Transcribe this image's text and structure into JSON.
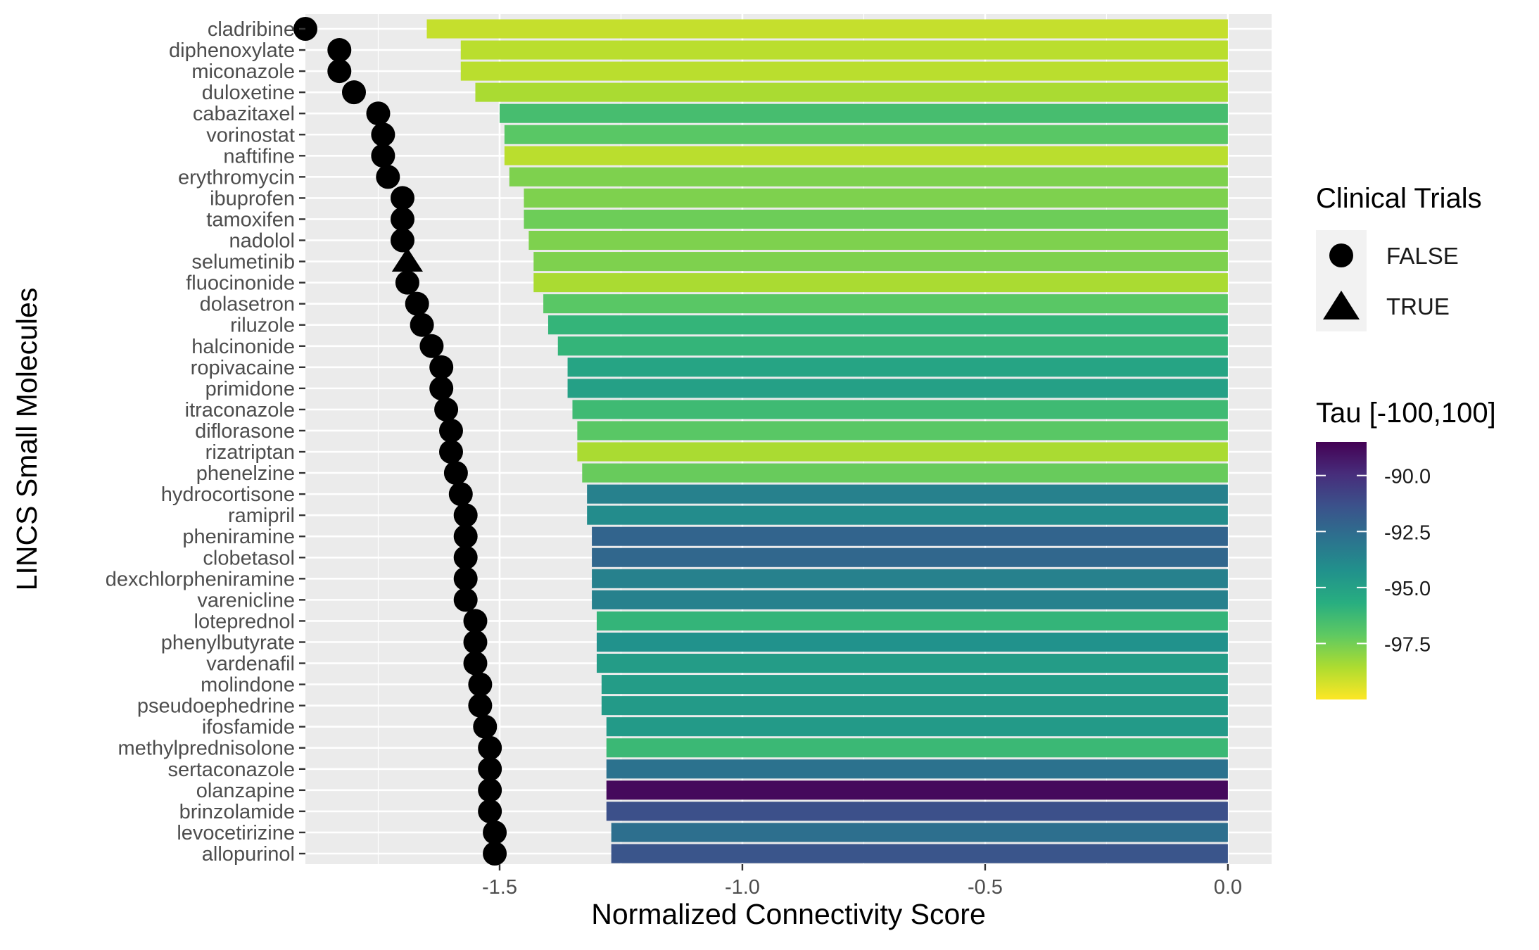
{
  "chart_data": {
    "type": "bar",
    "orientation": "horizontal",
    "xlabel": "Normalized Connectivity Score",
    "ylabel": "LINCS Small Molecules",
    "xlim": [
      -1.9,
      0.09
    ],
    "xticks": [
      -1.5,
      -1.0,
      -0.5,
      0.0
    ],
    "xtick_labels": [
      "-1.5",
      "-1.0",
      "-0.5",
      "0.0"
    ],
    "grid": true,
    "categories": [
      "cladribine",
      "diphenoxylate",
      "miconazole",
      "duloxetine",
      "cabazitaxel",
      "vorinostat",
      "naftifine",
      "erythromycin",
      "ibuprofen",
      "tamoxifen",
      "nadolol",
      "selumetinib",
      "fluocinonide",
      "dolasetron",
      "riluzole",
      "halcinonide",
      "ropivacaine",
      "primidone",
      "itraconazole",
      "diflorasone",
      "rizatriptan",
      "phenelzine",
      "hydrocortisone",
      "ramipril",
      "pheniramine",
      "clobetasol",
      "dexchlorpheniramine",
      "varenicline",
      "loteprednol",
      "phenylbutyrate",
      "vardenafil",
      "molindone",
      "pseudoephedrine",
      "ifosfamide",
      "methylprednisolone",
      "sertaconazole",
      "olanzapine",
      "brinzolamide",
      "levocetirizine",
      "allopurinol"
    ],
    "values": [
      -1.65,
      -1.58,
      -1.58,
      -1.55,
      -1.5,
      -1.49,
      -1.49,
      -1.48,
      -1.45,
      -1.45,
      -1.44,
      -1.43,
      -1.43,
      -1.41,
      -1.4,
      -1.38,
      -1.36,
      -1.36,
      -1.35,
      -1.34,
      -1.34,
      -1.33,
      -1.32,
      -1.32,
      -1.31,
      -1.31,
      -1.31,
      -1.31,
      -1.3,
      -1.3,
      -1.3,
      -1.29,
      -1.29,
      -1.28,
      -1.28,
      -1.28,
      -1.28,
      -1.28,
      -1.27,
      -1.27
    ],
    "tau": [
      -99.0,
      -98.8,
      -98.8,
      -98.5,
      -96.5,
      -97.0,
      -98.8,
      -97.7,
      -97.7,
      -97.4,
      -97.7,
      -97.7,
      -98.5,
      -97.0,
      -96.0,
      -96.0,
      -95.2,
      -95.0,
      -96.3,
      -97.0,
      -98.5,
      -97.3,
      -93.5,
      -94.0,
      -92.2,
      -92.3,
      -93.5,
      -93.5,
      -96.0,
      -94.3,
      -94.8,
      -94.8,
      -94.7,
      -94.7,
      -96.2,
      -92.8,
      -88.8,
      -91.3,
      -92.7,
      -91.5
    ],
    "points": [
      -1.9,
      -1.83,
      -1.83,
      -1.8,
      -1.75,
      -1.74,
      -1.74,
      -1.73,
      -1.7,
      -1.7,
      -1.7,
      -1.69,
      -1.69,
      -1.67,
      -1.66,
      -1.64,
      -1.62,
      -1.62,
      -1.61,
      -1.6,
      -1.6,
      -1.59,
      -1.58,
      -1.57,
      -1.57,
      -1.57,
      -1.57,
      -1.57,
      -1.55,
      -1.55,
      -1.55,
      -1.54,
      -1.54,
      -1.53,
      -1.52,
      -1.52,
      -1.52,
      -1.52,
      -1.51,
      -1.51
    ],
    "clinical_trials": [
      false,
      false,
      false,
      false,
      false,
      false,
      false,
      false,
      false,
      false,
      false,
      true,
      false,
      false,
      false,
      false,
      false,
      false,
      false,
      false,
      false,
      false,
      false,
      false,
      false,
      false,
      false,
      false,
      false,
      false,
      false,
      false,
      false,
      false,
      false,
      false,
      false,
      false,
      false,
      false
    ],
    "legend_shape": {
      "title": "Clinical Trials",
      "entries": [
        {
          "label": "FALSE",
          "shape": "circle"
        },
        {
          "label": "TRUE",
          "shape": "triangle"
        }
      ]
    },
    "legend_color": {
      "title": "Tau [-100,100]",
      "range": [
        -100,
        -88.5
      ],
      "ticks": [
        -90.0,
        -92.5,
        -95.0,
        -97.5
      ],
      "tick_labels": [
        "-90.0",
        "-92.5",
        "-95.0",
        "-97.5"
      ],
      "colormap": "viridis (reversed: low = yellow, high = purple)"
    },
    "legend_placement": "right",
    "colors": {
      "panel_background": "#ebebeb",
      "grid": "#ffffff",
      "points": "#000000"
    }
  }
}
